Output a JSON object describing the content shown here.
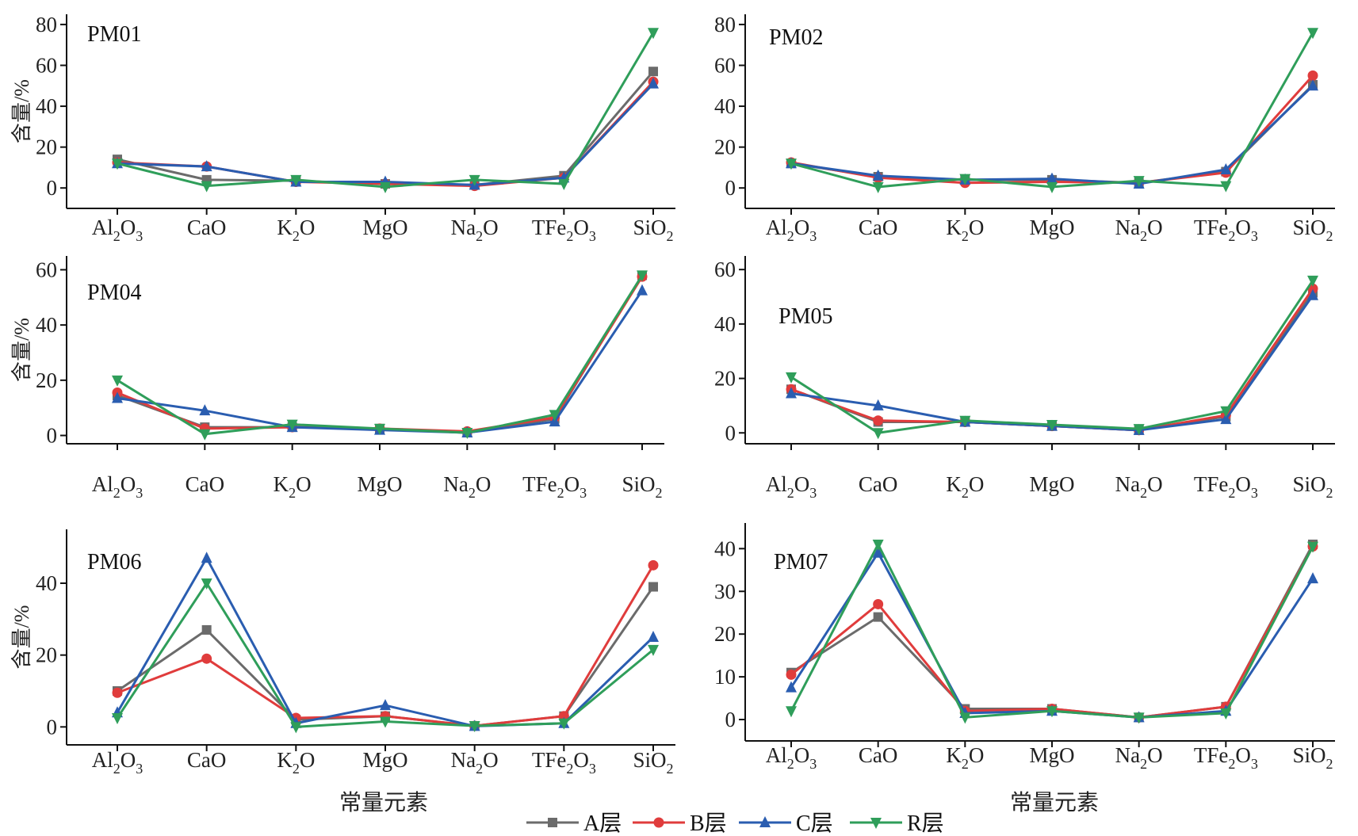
{
  "figure": {
    "x_axis_label": "常量元素",
    "y_axis_label": "含量/%",
    "legend": [
      {
        "name": "A层",
        "color": "#6b6b6b",
        "marker": "square"
      },
      {
        "name": "B层",
        "color": "#e03c3c",
        "marker": "circle"
      },
      {
        "name": "C层",
        "color": "#2a5db0",
        "marker": "triangle-up"
      },
      {
        "name": "R层",
        "color": "#2f9e5a",
        "marker": "triangle-down"
      }
    ],
    "x_ticks": [
      {
        "base": "Al",
        "sub1": "2",
        "mid": "O",
        "sub2": "3",
        "tail": ""
      },
      {
        "base": "CaO",
        "sub1": "",
        "mid": "",
        "sub2": "",
        "tail": ""
      },
      {
        "base": "K",
        "sub1": "2",
        "mid": "O",
        "sub2": "",
        "tail": ""
      },
      {
        "base": "MgO",
        "sub1": "",
        "mid": "",
        "sub2": "",
        "tail": ""
      },
      {
        "base": "Na",
        "sub1": "2",
        "mid": "O",
        "sub2": "",
        "tail": ""
      },
      {
        "base": "TFe",
        "sub1": "2",
        "mid": "O",
        "sub2": "3",
        "tail": ""
      },
      {
        "base": "SiO",
        "sub1": "2",
        "mid": "",
        "sub2": "",
        "tail": ""
      }
    ]
  },
  "chart_data": [
    {
      "type": "line",
      "title": "PM01",
      "categories": [
        "Al2O3",
        "CaO",
        "K2O",
        "MgO",
        "Na2O",
        "TFe2O3",
        "SiO2"
      ],
      "ylim": [
        -10,
        85
      ],
      "yticks": [
        0,
        20,
        40,
        60,
        80
      ],
      "xlabel": "",
      "ylabel": "含量/%",
      "series": [
        {
          "name": "A层",
          "values": [
            14,
            4,
            3.5,
            2,
            1.5,
            6,
            57
          ]
        },
        {
          "name": "B层",
          "values": [
            12.5,
            10.5,
            3,
            2,
            1,
            5,
            52
          ]
        },
        {
          "name": "C层",
          "values": [
            12,
            10.5,
            3,
            3,
            1.5,
            5,
            51
          ]
        },
        {
          "name": "R层",
          "values": [
            12,
            1,
            4,
            0.5,
            4,
            2,
            76
          ]
        }
      ]
    },
    {
      "type": "line",
      "title": "PM02",
      "categories": [
        "Al2O3",
        "CaO",
        "K2O",
        "MgO",
        "Na2O",
        "TFe2O3",
        "SiO2"
      ],
      "ylim": [
        -10,
        85
      ],
      "yticks": [
        0,
        20,
        40,
        60,
        80
      ],
      "xlabel": "",
      "ylabel": "",
      "series": [
        {
          "name": "A层",
          "values": [
            12,
            5.5,
            4,
            4,
            2.5,
            8,
            50.5
          ]
        },
        {
          "name": "B层",
          "values": [
            12.5,
            5,
            2.5,
            3,
            2.5,
            7.5,
            55
          ]
        },
        {
          "name": "C层",
          "values": [
            12,
            6,
            4,
            4.5,
            2,
            9,
            50
          ]
        },
        {
          "name": "R层",
          "values": [
            12,
            0.5,
            4.5,
            0.5,
            3.5,
            1,
            76
          ]
        }
      ]
    },
    {
      "type": "line",
      "title": "PM04",
      "categories": [
        "Al2O3",
        "CaO",
        "K2O",
        "MgO",
        "Na2O",
        "TFe2O3",
        "SiO2"
      ],
      "ylim": [
        -3,
        65
      ],
      "yticks": [
        0,
        20,
        40,
        60
      ],
      "xlabel": "",
      "ylabel": "含量/%",
      "series": [
        {
          "name": "A层",
          "values": [
            14.5,
            3,
            3,
            2.5,
            1,
            6,
            58
          ]
        },
        {
          "name": "B层",
          "values": [
            15.5,
            2.5,
            3,
            2.5,
            1.5,
            6.5,
            57.5
          ]
        },
        {
          "name": "C层",
          "values": [
            13.5,
            9,
            3,
            2,
            1,
            5,
            52.5
          ]
        },
        {
          "name": "R层",
          "values": [
            20,
            0.5,
            4,
            2.5,
            1,
            7.5,
            58
          ]
        }
      ]
    },
    {
      "type": "line",
      "title": "PM05",
      "categories": [
        "Al2O3",
        "CaO",
        "K2O",
        "MgO",
        "Na2O",
        "TFe2O3",
        "SiO2"
      ],
      "ylim": [
        -4,
        65
      ],
      "yticks": [
        0,
        20,
        40,
        60
      ],
      "xlabel": "",
      "ylabel": "",
      "series": [
        {
          "name": "A层",
          "values": [
            16,
            4,
            4,
            2.5,
            1,
            6,
            51.5
          ]
        },
        {
          "name": "B层",
          "values": [
            16,
            4.5,
            4,
            2.5,
            1,
            6.5,
            53
          ]
        },
        {
          "name": "C层",
          "values": [
            14.5,
            10,
            4,
            2.5,
            1,
            5,
            50.5
          ]
        },
        {
          "name": "R层",
          "values": [
            20.5,
            0,
            4.5,
            3,
            1.5,
            8,
            56
          ]
        }
      ]
    },
    {
      "type": "line",
      "title": "PM06",
      "categories": [
        "Al2O3",
        "CaO",
        "K2O",
        "MgO",
        "Na2O",
        "TFe2O3",
        "SiO2"
      ],
      "ylim": [
        -5,
        55
      ],
      "yticks": [
        0,
        20,
        40
      ],
      "xlabel": "常量元素",
      "ylabel": "含量/%",
      "series": [
        {
          "name": "A层",
          "values": [
            10,
            27,
            2,
            3,
            0.3,
            3,
            39
          ]
        },
        {
          "name": "B层",
          "values": [
            9.5,
            19,
            2.5,
            3,
            0.3,
            3,
            45
          ]
        },
        {
          "name": "C层",
          "values": [
            4,
            47,
            1,
            6,
            0.2,
            1,
            25
          ]
        },
        {
          "name": "R层",
          "values": [
            2.5,
            40,
            0,
            1.5,
            0.3,
            1,
            21.5
          ]
        }
      ]
    },
    {
      "type": "line",
      "title": "PM07",
      "categories": [
        "Al2O3",
        "CaO",
        "K2O",
        "MgO",
        "Na2O",
        "TFe2O3",
        "SiO2"
      ],
      "ylim": [
        -5,
        46
      ],
      "yticks": [
        0,
        10,
        20,
        30,
        40
      ],
      "xlabel": "常量元素",
      "ylabel": "",
      "series": [
        {
          "name": "A层",
          "values": [
            11,
            24,
            2.5,
            2.5,
            0.5,
            3,
            41
          ]
        },
        {
          "name": "B层",
          "values": [
            10.5,
            27,
            2,
            2.5,
            0.5,
            3,
            40.5
          ]
        },
        {
          "name": "C层",
          "values": [
            7.5,
            39,
            1.5,
            2,
            0.5,
            2,
            33
          ]
        },
        {
          "name": "R层",
          "values": [
            2,
            41,
            0.5,
            2,
            0.5,
            1.5,
            40.5
          ]
        }
      ]
    }
  ]
}
